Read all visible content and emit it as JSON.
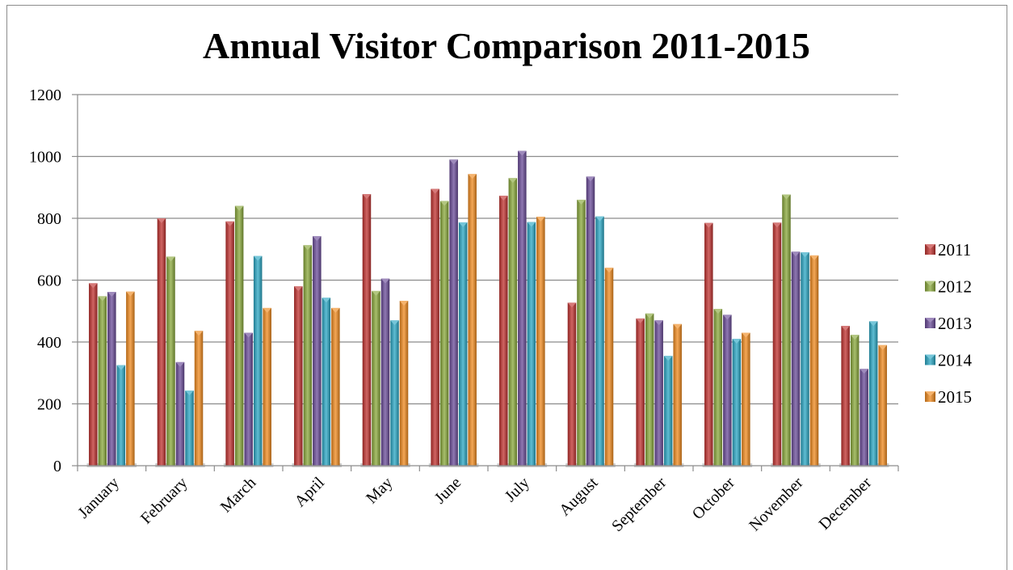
{
  "chart_data": {
    "type": "bar",
    "title": "Annual Visitor Comparison 2011-2015",
    "xlabel": "",
    "ylabel": "",
    "ylim": [
      0,
      1200
    ],
    "yticks": [
      0,
      200,
      400,
      600,
      800,
      1000,
      1200
    ],
    "grid": true,
    "legend_position": "right",
    "categories": [
      "January",
      "February",
      "March",
      "April",
      "May",
      "June",
      "July",
      "August",
      "September",
      "October",
      "November",
      "December"
    ],
    "series": [
      {
        "name": "2011",
        "color": "#c0312f",
        "values": [
          590,
          800,
          790,
          580,
          878,
          895,
          873,
          527,
          476,
          785,
          786,
          452
        ]
      },
      {
        "name": "2012",
        "color": "#89a83b",
        "values": [
          548,
          676,
          840,
          713,
          565,
          856,
          930,
          860,
          492,
          507,
          877,
          423
        ]
      },
      {
        "name": "2013",
        "color": "#6a4b98",
        "values": [
          562,
          335,
          430,
          742,
          605,
          990,
          1018,
          935,
          470,
          488,
          692,
          313
        ]
      },
      {
        "name": "2014",
        "color": "#2aa7c4",
        "values": [
          325,
          243,
          678,
          543,
          470,
          787,
          788,
          806,
          355,
          410,
          690,
          467
        ]
      },
      {
        "name": "2015",
        "color": "#f08a1e",
        "values": [
          563,
          436,
          510,
          510,
          533,
          943,
          805,
          640,
          458,
          430,
          680,
          390
        ]
      }
    ]
  }
}
